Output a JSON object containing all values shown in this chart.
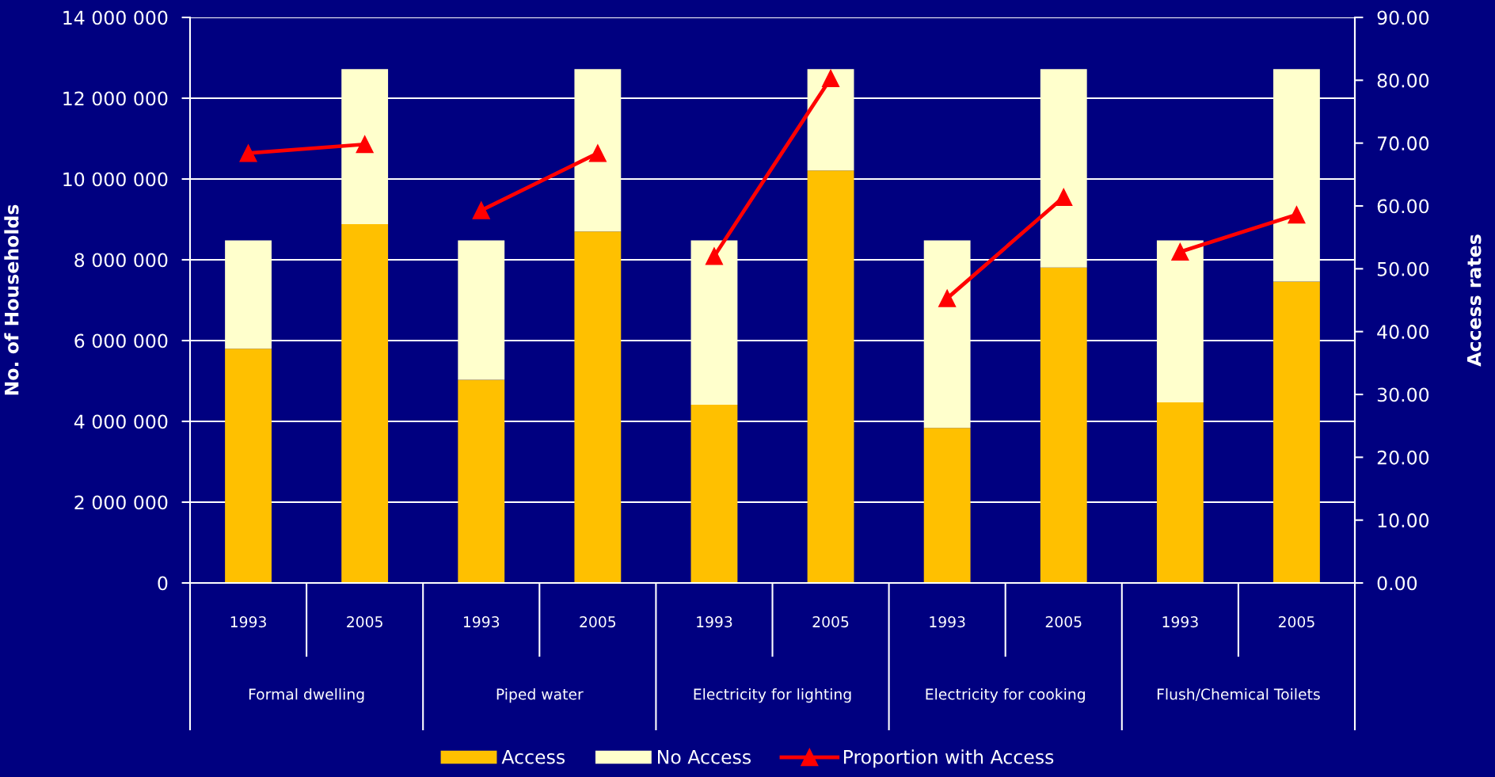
{
  "chart_data": {
    "type": "bar",
    "stacked": true,
    "categories": [
      "1993",
      "2005",
      "1993",
      "2005",
      "1993",
      "2005",
      "1993",
      "2005",
      "1993",
      "2005"
    ],
    "annotations": [
      "Formal dwelling",
      "Piped water",
      "Electricity for lighting",
      "Electricity for cooking",
      "Flush/Chemical Toilets"
    ],
    "ylabel": "No. of Households",
    "y2label": "Access rates",
    "ylim": [
      0,
      14000000
    ],
    "yticks": [
      0,
      {
        "value": 2000000,
        "label": "2 000 000"
      },
      {
        "value": 4000000,
        "label": "4 000 000"
      },
      {
        "value": 6000000,
        "label": "6 000 000"
      },
      {
        "value": 8000000,
        "label": "8 000 000"
      },
      {
        "value": 10000000,
        "label": "10 000 000"
      },
      {
        "value": 12000000,
        "label": "12 000 000"
      },
      {
        "value": 14000000,
        "label": "14 000 000"
      }
    ],
    "y2lim": [
      0,
      90
    ],
    "y2ticks": [
      {
        "value": 0,
        "label": "0.00"
      },
      {
        "value": 10,
        "label": "10.00"
      },
      {
        "value": 20,
        "label": "20.00"
      },
      {
        "value": 30,
        "label": "30.00"
      },
      {
        "value": 40,
        "label": "40.00"
      },
      {
        "value": 50,
        "label": "50.00"
      },
      {
        "value": 60,
        "label": "60.00"
      },
      {
        "value": 70,
        "label": "70.00"
      },
      {
        "value": 80,
        "label": "80.00"
      },
      {
        "value": 90,
        "label": "90.00"
      }
    ],
    "grid": "y",
    "legend": "bottom",
    "marker": "triangle",
    "line_style": "solid",
    "series": [
      {
        "name": "Access",
        "color": "#ffc000",
        "values": [
          5800000,
          8880000,
          5030000,
          8700000,
          4410000,
          10210000,
          3840000,
          7810000,
          4470000,
          7460000
        ]
      },
      {
        "name": "No Access",
        "color": "#ffffcc",
        "values": [
          2680000,
          3840000,
          3450000,
          4020000,
          4070000,
          2510000,
          4640000,
          4910000,
          4010000,
          5260000
        ]
      },
      {
        "name": "Proportion with Access",
        "type": "line",
        "axis": "y2",
        "color": "#ff0000",
        "values": [
          68.4,
          69.8,
          null,
          null,
          null,
          null,
          null,
          null,
          null,
          null
        ]
      },
      {
        "type": "line",
        "axis": "y2",
        "color": "#ff0000",
        "values": [
          null,
          null,
          59.3,
          68.4,
          null,
          null,
          null,
          null,
          null,
          null
        ]
      },
      {
        "type": "line",
        "axis": "y2",
        "color": "#ff0000",
        "values": [
          null,
          null,
          null,
          null,
          52.0,
          80.3,
          null,
          null,
          null,
          null
        ]
      },
      {
        "type": "line",
        "axis": "y2",
        "color": "#ff0000",
        "values": [
          null,
          null,
          null,
          null,
          null,
          null,
          45.3,
          61.4,
          null,
          null
        ]
      },
      {
        "type": "line",
        "axis": "y2",
        "color": "#ff0000",
        "values": [
          null,
          null,
          null,
          null,
          null,
          null,
          null,
          null,
          52.7,
          58.6
        ]
      }
    ]
  }
}
